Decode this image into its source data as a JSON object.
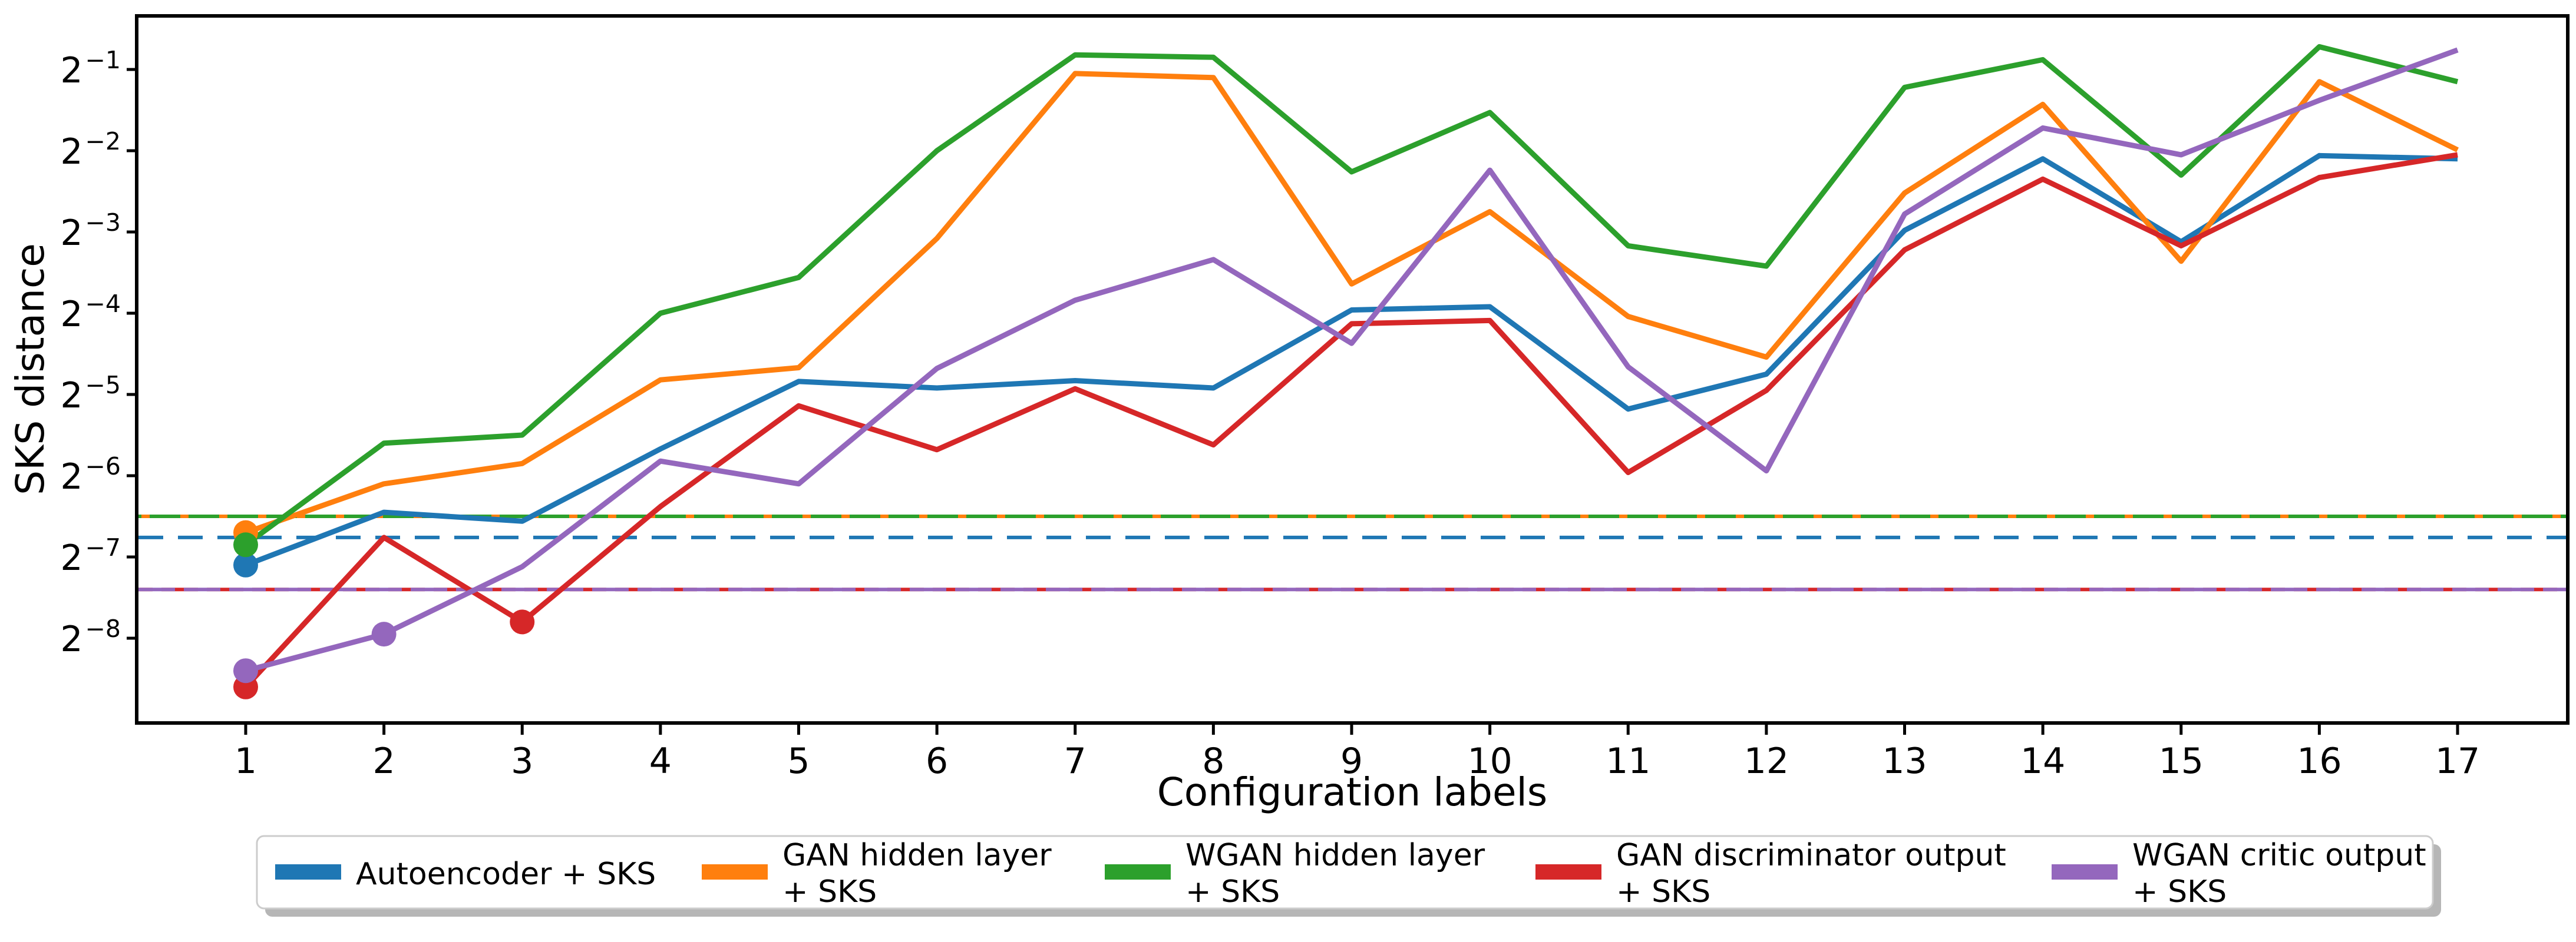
{
  "chart_data": {
    "type": "line",
    "title": "",
    "xlabel": "Configuration labels",
    "ylabel": "SKS distance",
    "y_scale": "log2",
    "grid": false,
    "legend_position": "bottom-outside",
    "x": [
      1,
      2,
      3,
      4,
      5,
      6,
      7,
      8,
      9,
      10,
      11,
      12,
      13,
      14,
      15,
      16,
      17
    ],
    "x_tick_labels": [
      "1",
      "2",
      "3",
      "4",
      "5",
      "6",
      "7",
      "8",
      "9",
      "10",
      "11",
      "12",
      "13",
      "14",
      "15",
      "16",
      "17"
    ],
    "y_tick_base": "2",
    "y_tick_exponents": [
      "−1",
      "−2",
      "−3",
      "−4",
      "−5",
      "−6",
      "−7",
      "−8"
    ],
    "y_tick_values": [
      0.5,
      0.25,
      0.125,
      0.0625,
      0.03125,
      0.015625,
      0.0078125,
      0.00390625
    ],
    "xlim": [
      0.2,
      17.8
    ],
    "ylim_neg_log2": [
      9.04,
      0.34
    ],
    "series": [
      {
        "id": "autoencoder-sks",
        "name": "Autoencoder + SKS",
        "legend_lines": [
          "Autoencoder + SKS"
        ],
        "color": "#1f77b4",
        "neg_log2": [
          7.1,
          6.45,
          6.56,
          5.67,
          4.84,
          4.92,
          4.83,
          4.92,
          3.96,
          3.92,
          5.18,
          4.75,
          2.98,
          2.1,
          3.12,
          2.06,
          2.1
        ],
        "values": [
          0.00729,
          0.01143,
          0.01059,
          0.01963,
          0.03491,
          0.03302,
          0.03516,
          0.03302,
          0.06424,
          0.06605,
          0.02759,
          0.03716,
          0.12666,
          0.23326,
          0.11487,
          0.23978,
          0.23326
        ],
        "marker_x": [
          1
        ],
        "baseline_neg_log2": 6.76,
        "baseline_value": 0.00922
      },
      {
        "id": "gan-hidden-layer-sks",
        "name": "GAN hidden layer + SKS",
        "legend_lines": [
          "GAN hidden layer",
          "+ SKS"
        ],
        "color": "#ff7f0e",
        "neg_log2": [
          6.7,
          6.1,
          5.85,
          4.82,
          4.67,
          3.08,
          1.05,
          1.1,
          3.64,
          2.75,
          4.04,
          4.54,
          2.52,
          1.43,
          3.36,
          1.15,
          1.99
        ],
        "values": [
          0.00962,
          0.01458,
          0.01734,
          0.0354,
          0.03929,
          0.11829,
          0.48297,
          0.46651,
          0.08022,
          0.14865,
          0.06076,
          0.04299,
          0.17437,
          0.37101,
          0.09742,
          0.45048,
          0.25173
        ],
        "marker_x": [
          1
        ],
        "baseline_neg_log2": 6.5,
        "baseline_value": 0.01105
      },
      {
        "id": "wgan-hidden-layer-sks",
        "name": "WGAN hidden layer + SKS",
        "legend_lines": [
          "WGAN hidden layer",
          "+ SKS"
        ],
        "color": "#2ca02c",
        "neg_log2": [
          6.85,
          5.6,
          5.5,
          4.0,
          3.56,
          2.0,
          0.82,
          0.85,
          2.26,
          1.53,
          3.17,
          3.42,
          1.22,
          0.88,
          2.3,
          0.72,
          1.15
        ],
        "values": [
          0.00867,
          0.02062,
          0.0221,
          0.0625,
          0.08477,
          0.25,
          0.56645,
          0.55476,
          0.20886,
          0.34628,
          0.11106,
          0.09344,
          0.4293,
          0.5434,
          0.20306,
          0.60709,
          0.45048
        ],
        "marker_x": [
          1
        ],
        "baseline_neg_log2": 6.5,
        "baseline_value": 0.01105
      },
      {
        "id": "gan-discriminator-output-sks",
        "name": "GAN discriminator output + SKS",
        "legend_lines": [
          "GAN discriminator output",
          "+ SKS"
        ],
        "color": "#d62728",
        "neg_log2": [
          8.6,
          6.76,
          7.8,
          6.38,
          5.14,
          5.68,
          4.93,
          5.62,
          4.13,
          4.09,
          5.96,
          4.95,
          3.22,
          2.35,
          3.17,
          2.33,
          2.05
        ],
        "values": [
          0.00258,
          0.00922,
          0.00449,
          0.012,
          0.02837,
          0.0195,
          0.03279,
          0.02033,
          0.05715,
          0.05874,
          0.01607,
          0.03234,
          0.10718,
          0.19611,
          0.11106,
          0.19886,
          0.2415
        ],
        "marker_x": [
          1,
          3
        ],
        "baseline_neg_log2": 7.4,
        "baseline_value": 0.00592
      },
      {
        "id": "wgan-critic-output-sks",
        "name": "WGAN critic output + SKS",
        "legend_lines": [
          "WGAN critic output",
          "+ SKS"
        ],
        "color": "#9467bd",
        "neg_log2": [
          8.4,
          7.95,
          7.12,
          5.82,
          6.1,
          4.68,
          3.84,
          3.34,
          4.37,
          2.24,
          4.66,
          5.94,
          2.78,
          1.72,
          2.05,
          1.38,
          0.76
        ],
        "values": [
          0.00296,
          0.00405,
          0.00719,
          0.0177,
          0.01458,
          0.03902,
          0.06987,
          0.09876,
          0.04837,
          0.21169,
          0.03956,
          0.01629,
          0.14552,
          0.30366,
          0.2415,
          0.38426,
          0.59055
        ],
        "marker_x": [
          1,
          2
        ],
        "baseline_neg_log2": 7.4,
        "baseline_value": 0.00592
      }
    ]
  }
}
